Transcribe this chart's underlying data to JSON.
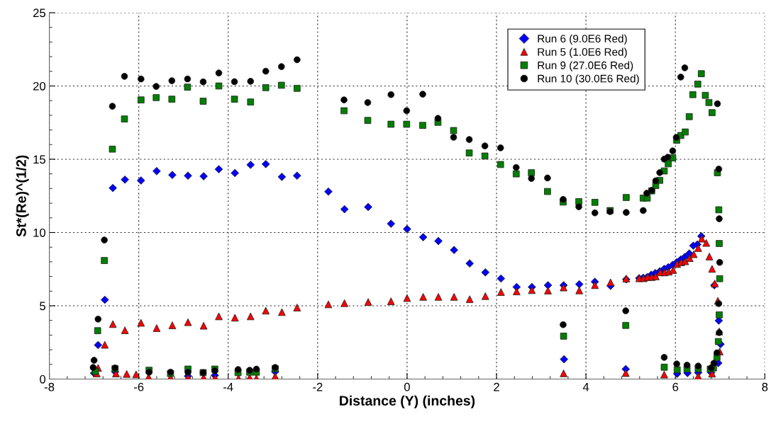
{
  "chart_data": {
    "type": "scatter",
    "xlabel": "Distance (Y) (inches)",
    "ylabel": "St*(Re)^(1/2)",
    "xlim": [
      -8,
      8
    ],
    "xticks": [
      -8,
      -6,
      -4,
      -2,
      0,
      2,
      4,
      6,
      8
    ],
    "ylim": [
      0,
      25
    ],
    "yticks": [
      0,
      5,
      10,
      15,
      20,
      25
    ],
    "grid": true,
    "legend": "top right",
    "series": [
      {
        "name": "Run 6 (9.0E6 Red)",
        "color": "#0000ff",
        "marker": "diamond",
        "x": [
          -6.91,
          -6.76,
          -6.58,
          -6.31,
          -5.95,
          -5.6,
          -5.25,
          -4.9,
          -4.55,
          -4.21,
          -3.85,
          -3.5,
          -3.16,
          -2.8,
          -2.46,
          -7.0,
          -6.53,
          -4.9,
          -4.3,
          -2.95,
          -1.76,
          -1.4,
          -0.87,
          -0.36,
          0.0,
          0.36,
          0.7,
          1.05,
          1.4,
          1.75,
          2.1,
          2.45,
          2.79,
          3.15,
          3.5,
          3.85,
          4.2,
          4.55,
          4.9,
          5.19,
          5.28,
          5.37,
          5.46,
          5.55,
          5.65,
          5.75,
          5.84,
          5.94,
          6.03,
          6.12,
          6.21,
          6.31,
          6.4,
          6.49,
          6.58,
          6.87,
          6.97,
          7.01,
          3.51,
          4.89,
          6.04,
          6.27,
          6.51,
          6.8,
          6.96
        ],
        "values": [
          2.32,
          5.41,
          13.04,
          13.61,
          13.55,
          14.19,
          13.93,
          13.88,
          13.84,
          14.32,
          14.06,
          14.62,
          14.67,
          13.8,
          13.88,
          0.4,
          0.5,
          0.2,
          0.25,
          0.5,
          12.79,
          11.59,
          11.74,
          10.6,
          10.24,
          9.68,
          9.42,
          8.81,
          7.89,
          7.28,
          6.86,
          6.28,
          6.28,
          6.4,
          6.4,
          6.47,
          6.64,
          6.36,
          6.8,
          6.88,
          6.91,
          6.96,
          7.12,
          7.23,
          7.36,
          7.52,
          7.63,
          7.79,
          7.97,
          8.16,
          8.33,
          8.57,
          9.1,
          9.18,
          9.75,
          6.4,
          3.99,
          2.38,
          1.35,
          0.68,
          0.36,
          0.41,
          0.44,
          0.44,
          1.09
        ]
      },
      {
        "name": "Run 5 (1.0E6 Red)",
        "color": "#ff0000",
        "marker": "triangle",
        "x": [
          -6.91,
          -6.76,
          -6.58,
          -6.31,
          -5.95,
          -5.6,
          -5.25,
          -4.9,
          -4.55,
          -4.21,
          -3.85,
          -3.5,
          -3.16,
          -2.8,
          -2.46,
          -6.94,
          -6.51,
          -6.27,
          -6.06,
          -5.78,
          -5.29,
          -4.9,
          -4.55,
          -4.29,
          -3.77,
          -3.52,
          -3.37,
          -2.95,
          -1.76,
          -1.4,
          -0.87,
          -0.36,
          0.0,
          0.36,
          0.7,
          1.05,
          1.4,
          1.75,
          2.1,
          2.45,
          2.79,
          3.15,
          3.5,
          3.85,
          4.2,
          4.55,
          4.9,
          5.19,
          5.29,
          5.38,
          5.47,
          5.56,
          5.66,
          5.76,
          5.85,
          5.95,
          6.04,
          6.13,
          6.22,
          6.32,
          6.41,
          6.51,
          6.59,
          6.69,
          6.76,
          6.82,
          6.88,
          6.95,
          6.98,
          6.99,
          3.5,
          4.89,
          5.75,
          6.51,
          6.82
        ],
        "values": [
          0.76,
          2.34,
          3.75,
          3.33,
          3.84,
          3.48,
          3.67,
          3.88,
          3.64,
          4.28,
          4.19,
          4.28,
          4.67,
          4.57,
          4.88,
          0.38,
          0.38,
          0.35,
          0.32,
          0.14,
          0.11,
          0.11,
          0.11,
          0.08,
          0.05,
          0.11,
          0.05,
          0.19,
          5.1,
          5.18,
          5.26,
          5.31,
          5.53,
          5.61,
          5.61,
          5.61,
          5.45,
          5.66,
          5.94,
          5.98,
          6.07,
          6.04,
          6.25,
          6.05,
          6.41,
          6.6,
          6.86,
          6.88,
          6.88,
          6.96,
          6.96,
          7.01,
          7.28,
          7.28,
          7.33,
          7.44,
          7.85,
          7.97,
          8.04,
          8.25,
          8.52,
          8.94,
          9.58,
          9.29,
          8.36,
          7.52,
          6.52,
          5.34,
          3.25,
          1.88,
          0.39,
          0.41,
          0.31,
          0.2,
          0.37
        ]
      },
      {
        "name": "Run 9 (27.0E6 Red)",
        "color": "#008000",
        "marker": "square",
        "x": [
          -6.92,
          -6.77,
          -6.59,
          -6.32,
          -5.95,
          -5.61,
          -5.26,
          -4.91,
          -4.56,
          -4.21,
          -3.86,
          -3.5,
          -3.16,
          -2.81,
          -2.46,
          -6.97,
          -6.53,
          -5.77,
          -5.29,
          -4.9,
          -4.56,
          -4.3,
          -3.78,
          -3.52,
          -3.37,
          -2.95,
          -1.41,
          -0.88,
          -0.36,
          -0.01,
          0.35,
          0.69,
          1.04,
          1.39,
          1.74,
          2.09,
          2.44,
          2.78,
          3.14,
          3.49,
          3.84,
          4.2,
          4.54,
          4.9,
          5.28,
          5.37,
          5.47,
          5.56,
          5.65,
          5.75,
          5.84,
          5.94,
          6.03,
          6.12,
          6.22,
          6.31,
          6.39,
          6.5,
          6.58,
          6.67,
          6.75,
          6.82,
          6.94,
          6.97,
          6.98,
          6.99,
          6.98,
          6.96,
          6.93,
          6.85,
          3.5,
          4.89,
          5.75,
          6.04,
          6.26,
          6.51,
          6.78
        ],
        "values": [
          3.3,
          8.09,
          15.69,
          17.75,
          19.05,
          19.21,
          19.1,
          19.92,
          18.96,
          20.0,
          19.1,
          18.91,
          19.89,
          20.05,
          19.84,
          0.52,
          0.71,
          0.6,
          0.38,
          0.68,
          0.44,
          0.68,
          0.44,
          0.47,
          0.47,
          0.71,
          18.31,
          17.65,
          17.39,
          17.39,
          17.31,
          17.52,
          16.96,
          15.43,
          15.22,
          14.64,
          14.0,
          14.08,
          12.8,
          12.08,
          12.11,
          12.06,
          11.5,
          12.39,
          12.35,
          12.35,
          12.84,
          13.21,
          13.56,
          14.2,
          14.69,
          15.09,
          16.3,
          16.62,
          16.86,
          17.91,
          19.41,
          20.13,
          20.84,
          19.36,
          18.87,
          18.18,
          14.08,
          11.55,
          9.25,
          6.85,
          4.38,
          2.56,
          1.48,
          0.76,
          2.93,
          3.66,
          0.81,
          0.63,
          0.68,
          0.71,
          0.68
        ]
      },
      {
        "name": "Run 10 (30.0E6 Red)",
        "color": "#000000",
        "marker": "circle",
        "x": [
          -7.0,
          -6.91,
          -6.77,
          -6.59,
          -6.32,
          -5.95,
          -5.61,
          -5.26,
          -4.91,
          -4.56,
          -4.21,
          -3.86,
          -3.5,
          -3.16,
          -2.81,
          -2.46,
          -7.02,
          -6.53,
          -5.77,
          -5.29,
          -4.9,
          -4.56,
          -4.3,
          -3.78,
          -3.52,
          -3.37,
          -2.95,
          -1.41,
          -0.88,
          -0.36,
          -0.01,
          0.35,
          0.69,
          1.04,
          1.39,
          1.74,
          2.09,
          2.44,
          2.78,
          3.14,
          3.49,
          3.84,
          4.2,
          4.54,
          4.9,
          5.28,
          5.36,
          5.47,
          5.56,
          5.65,
          5.75,
          5.83,
          5.94,
          6.02,
          6.12,
          6.21,
          6.94,
          6.97,
          6.98,
          6.99,
          6.97,
          6.98,
          6.93,
          6.86,
          6.8,
          3.49,
          4.89,
          5.75,
          6.03,
          6.26,
          6.51
        ],
        "values": [
          1.28,
          4.09,
          9.49,
          18.62,
          20.66,
          20.48,
          19.97,
          20.36,
          20.48,
          20.28,
          20.89,
          20.29,
          20.32,
          21.01,
          21.32,
          21.79,
          0.79,
          0.76,
          0.47,
          0.47,
          0.47,
          0.44,
          0.57,
          0.65,
          0.6,
          0.68,
          0.79,
          19.05,
          18.87,
          19.41,
          18.31,
          19.44,
          17.79,
          16.5,
          16.35,
          15.91,
          15.78,
          14.44,
          13.69,
          13.72,
          12.26,
          11.76,
          11.34,
          11.43,
          11.37,
          11.5,
          12.68,
          12.88,
          13.53,
          14.09,
          15.01,
          15.14,
          15.57,
          16.49,
          20.61,
          21.24,
          18.79,
          14.33,
          10.94,
          7.96,
          5.15,
          3.17,
          1.79,
          1.08,
          0.76,
          3.71,
          4.66,
          1.48,
          1.03,
          0.95,
          0.89
        ]
      }
    ]
  }
}
